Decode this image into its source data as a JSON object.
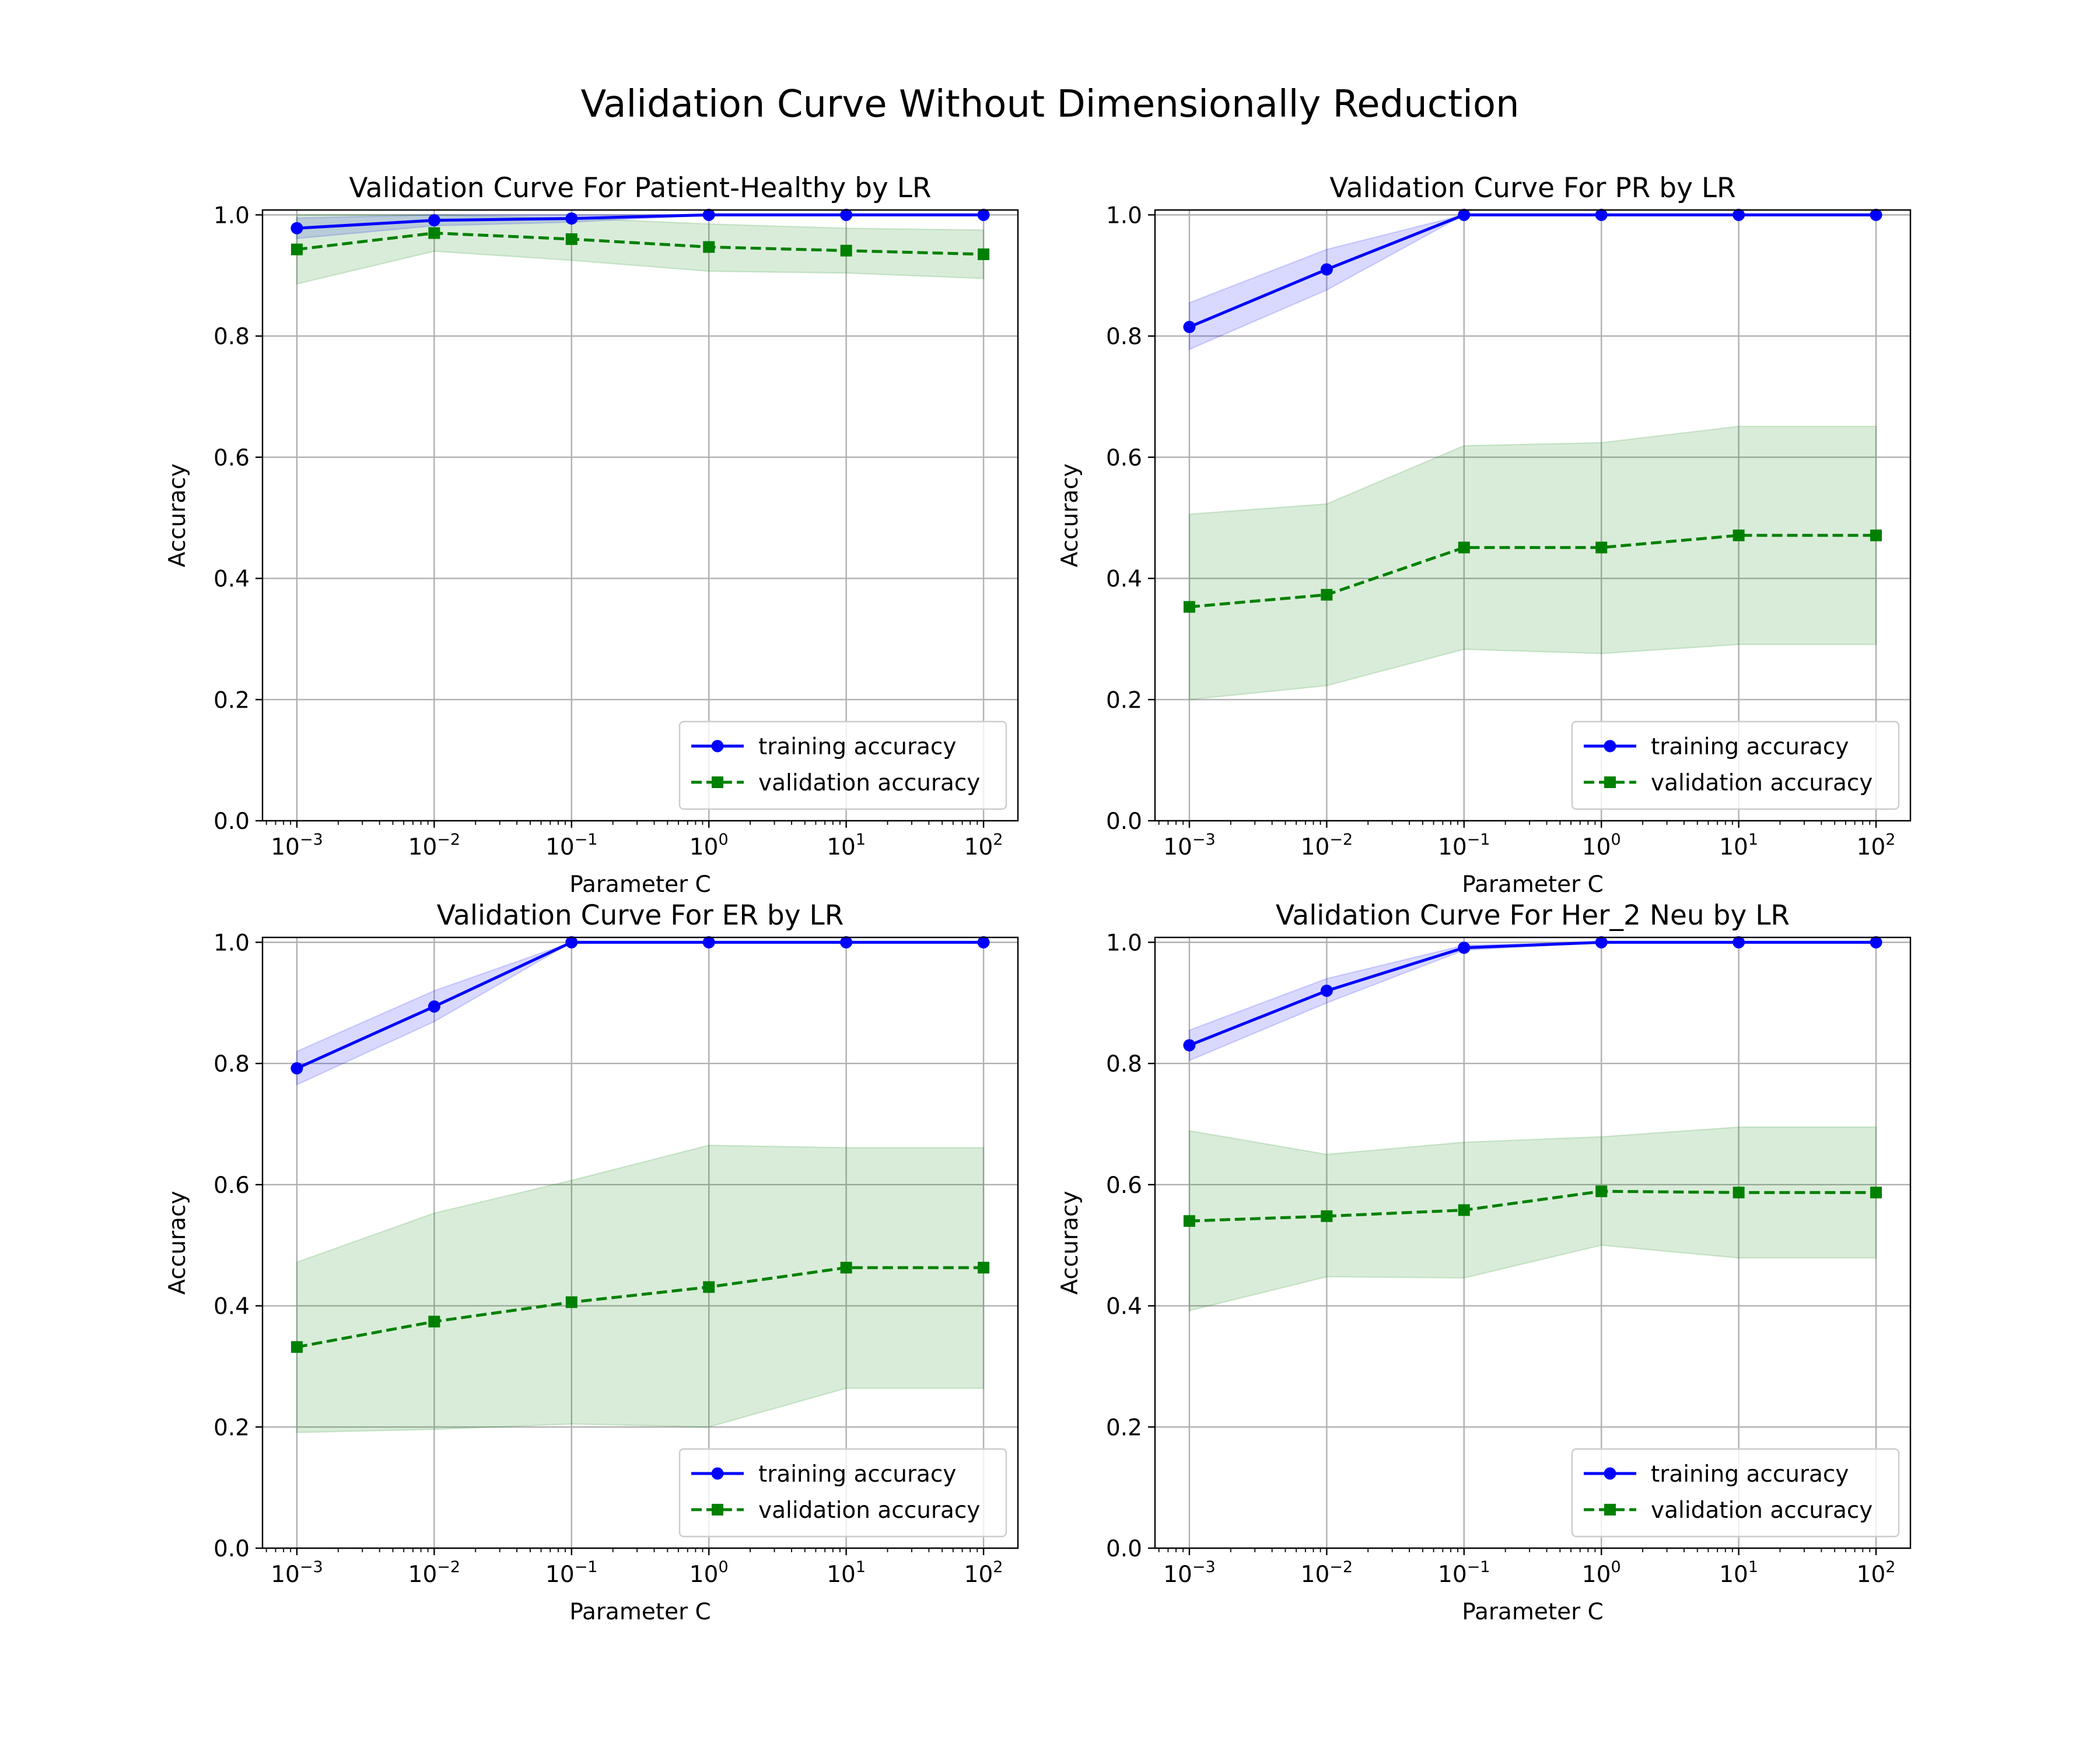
{
  "figure": {
    "title": "Validation Curve Without Dimensionally Reduction"
  },
  "chart_data": [
    {
      "type": "line",
      "title": "Validation Curve For Patient-Healthy by LR",
      "xlabel": "Parameter C",
      "ylabel": "Accuracy",
      "xscale": "log",
      "x": [
        0.001,
        0.01,
        0.1,
        1,
        10,
        100
      ],
      "x_tick_labels": [
        {
          "base": "10",
          "exp": "−3"
        },
        {
          "base": "10",
          "exp": "−2"
        },
        {
          "base": "10",
          "exp": "−1"
        },
        {
          "base": "10",
          "exp": "0"
        },
        {
          "base": "10",
          "exp": "1"
        },
        {
          "base": "10",
          "exp": "2"
        }
      ],
      "ylim": [
        0,
        1.0
      ],
      "y_ticks": [
        "0.0",
        "0.2",
        "0.4",
        "0.6",
        "0.8",
        "1.0"
      ],
      "grid": true,
      "legend_position": "lower right",
      "series": [
        {
          "name": "training accuracy",
          "color": "#0000ff",
          "marker": "circle",
          "linestyle": "solid",
          "values": [
            0.978,
            0.991,
            0.994,
            1.0,
            1.0,
            1.0
          ],
          "band_upper": [
            0.995,
            1.0,
            1.0,
            1.0,
            1.0,
            1.0
          ],
          "band_lower": [
            0.961,
            0.982,
            0.988,
            1.0,
            1.0,
            1.0
          ]
        },
        {
          "name": "validation accuracy",
          "color": "#008000",
          "marker": "square",
          "linestyle": "dashed",
          "values": [
            0.943,
            0.97,
            0.96,
            0.947,
            0.941,
            0.935
          ],
          "band_upper": [
            1.0,
            1.0,
            0.995,
            0.985,
            0.978,
            0.975
          ],
          "band_lower": [
            0.886,
            0.94,
            0.925,
            0.907,
            0.904,
            0.895
          ]
        }
      ]
    },
    {
      "type": "line",
      "title": "Validation Curve For PR by LR",
      "xlabel": "Parameter C",
      "ylabel": "Accuracy",
      "xscale": "log",
      "x": [
        0.001,
        0.01,
        0.1,
        1,
        10,
        100
      ],
      "x_tick_labels": [
        {
          "base": "10",
          "exp": "−3"
        },
        {
          "base": "10",
          "exp": "−2"
        },
        {
          "base": "10",
          "exp": "−1"
        },
        {
          "base": "10",
          "exp": "0"
        },
        {
          "base": "10",
          "exp": "1"
        },
        {
          "base": "10",
          "exp": "2"
        }
      ],
      "ylim": [
        0,
        1.0
      ],
      "y_ticks": [
        "0.0",
        "0.2",
        "0.4",
        "0.6",
        "0.8",
        "1.0"
      ],
      "grid": true,
      "legend_position": "lower right",
      "series": [
        {
          "name": "training accuracy",
          "color": "#0000ff",
          "marker": "circle",
          "linestyle": "solid",
          "values": [
            0.815,
            0.91,
            1.0,
            1.0,
            1.0,
            1.0
          ],
          "band_upper": [
            0.855,
            0.943,
            1.0,
            1.0,
            1.0,
            1.0
          ],
          "band_lower": [
            0.778,
            0.876,
            1.0,
            1.0,
            1.0,
            1.0
          ]
        },
        {
          "name": "validation accuracy",
          "color": "#008000",
          "marker": "square",
          "linestyle": "dashed",
          "values": [
            0.353,
            0.373,
            0.451,
            0.451,
            0.471,
            0.471
          ],
          "band_upper": [
            0.506,
            0.523,
            0.619,
            0.624,
            0.651,
            0.651
          ],
          "band_lower": [
            0.2,
            0.223,
            0.283,
            0.276,
            0.291,
            0.291
          ]
        }
      ]
    },
    {
      "type": "line",
      "title": "Validation Curve For ER by LR",
      "xlabel": "Parameter C",
      "ylabel": "Accuracy",
      "xscale": "log",
      "x": [
        0.001,
        0.01,
        0.1,
        1,
        10,
        100
      ],
      "x_tick_labels": [
        {
          "base": "10",
          "exp": "−3"
        },
        {
          "base": "10",
          "exp": "−2"
        },
        {
          "base": "10",
          "exp": "−1"
        },
        {
          "base": "10",
          "exp": "0"
        },
        {
          "base": "10",
          "exp": "1"
        },
        {
          "base": "10",
          "exp": "2"
        }
      ],
      "ylim": [
        0,
        1.0
      ],
      "y_ticks": [
        "0.0",
        "0.2",
        "0.4",
        "0.6",
        "0.8",
        "1.0"
      ],
      "grid": true,
      "legend_position": "lower right",
      "series": [
        {
          "name": "training accuracy",
          "color": "#0000ff",
          "marker": "circle",
          "linestyle": "solid",
          "values": [
            0.792,
            0.894,
            1.0,
            1.0,
            1.0,
            1.0
          ],
          "band_upper": [
            0.82,
            0.92,
            1.0,
            1.0,
            1.0,
            1.0
          ],
          "band_lower": [
            0.765,
            0.869,
            1.0,
            1.0,
            1.0,
            1.0
          ]
        },
        {
          "name": "validation accuracy",
          "color": "#008000",
          "marker": "square",
          "linestyle": "dashed",
          "values": [
            0.332,
            0.374,
            0.406,
            0.431,
            0.463,
            0.463
          ],
          "band_upper": [
            0.472,
            0.553,
            0.607,
            0.665,
            0.661,
            0.661
          ],
          "band_lower": [
            0.191,
            0.196,
            0.205,
            0.2,
            0.264,
            0.264
          ]
        }
      ]
    },
    {
      "type": "line",
      "title": "Validation Curve For Her_2 Neu by LR",
      "xlabel": "Parameter C",
      "ylabel": "Accuracy",
      "xscale": "log",
      "x": [
        0.001,
        0.01,
        0.1,
        1,
        10,
        100
      ],
      "x_tick_labels": [
        {
          "base": "10",
          "exp": "−3"
        },
        {
          "base": "10",
          "exp": "−2"
        },
        {
          "base": "10",
          "exp": "−1"
        },
        {
          "base": "10",
          "exp": "0"
        },
        {
          "base": "10",
          "exp": "1"
        },
        {
          "base": "10",
          "exp": "2"
        }
      ],
      "ylim": [
        0,
        1.0
      ],
      "y_ticks": [
        "0.0",
        "0.2",
        "0.4",
        "0.6",
        "0.8",
        "1.0"
      ],
      "grid": true,
      "legend_position": "lower right",
      "series": [
        {
          "name": "training accuracy",
          "color": "#0000ff",
          "marker": "circle",
          "linestyle": "solid",
          "values": [
            0.83,
            0.92,
            0.991,
            1.0,
            1.0,
            1.0
          ],
          "band_upper": [
            0.855,
            0.94,
            0.995,
            1.0,
            1.0,
            1.0
          ],
          "band_lower": [
            0.805,
            0.9,
            0.987,
            1.0,
            1.0,
            1.0
          ]
        },
        {
          "name": "validation accuracy",
          "color": "#008000",
          "marker": "square",
          "linestyle": "dashed",
          "values": [
            0.54,
            0.548,
            0.558,
            0.589,
            0.587,
            0.587
          ],
          "band_upper": [
            0.689,
            0.65,
            0.67,
            0.679,
            0.695,
            0.695
          ],
          "band_lower": [
            0.392,
            0.448,
            0.446,
            0.5,
            0.479,
            0.479
          ]
        }
      ]
    }
  ]
}
